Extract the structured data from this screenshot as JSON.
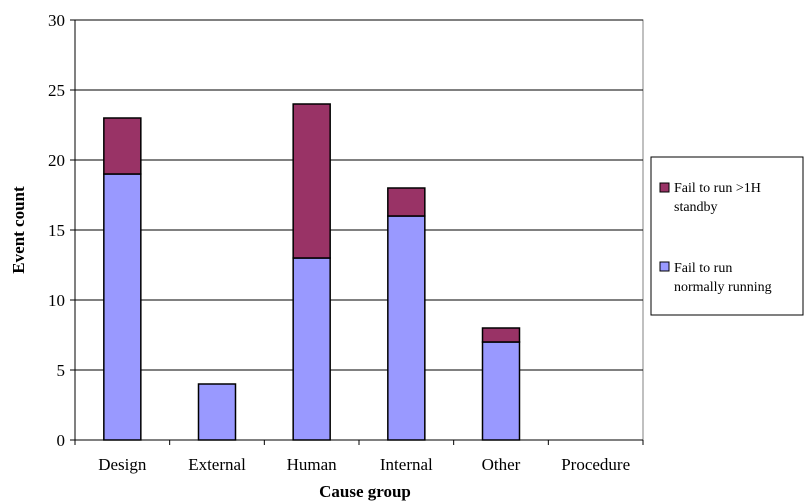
{
  "chart_data": {
    "type": "bar",
    "stacked": true,
    "categories": [
      "Design",
      "External",
      "Human",
      "Internal",
      "Other",
      "Procedure"
    ],
    "series": [
      {
        "name_lines": [
          "Fail to run",
          "normally running"
        ],
        "color": "#9999ff",
        "values": [
          19,
          4,
          13,
          16,
          7,
          0
        ]
      },
      {
        "name_lines": [
          "Fail to run >1H",
          "standby"
        ],
        "color": "#993366",
        "values": [
          4,
          0,
          11,
          2,
          1,
          0
        ]
      }
    ],
    "xlabel": "Cause group",
    "ylabel": "Event count",
    "ylim": [
      0,
      30
    ],
    "yticks": [
      0,
      5,
      10,
      15,
      20,
      25,
      30
    ],
    "grid": true,
    "legend_position": "right"
  }
}
